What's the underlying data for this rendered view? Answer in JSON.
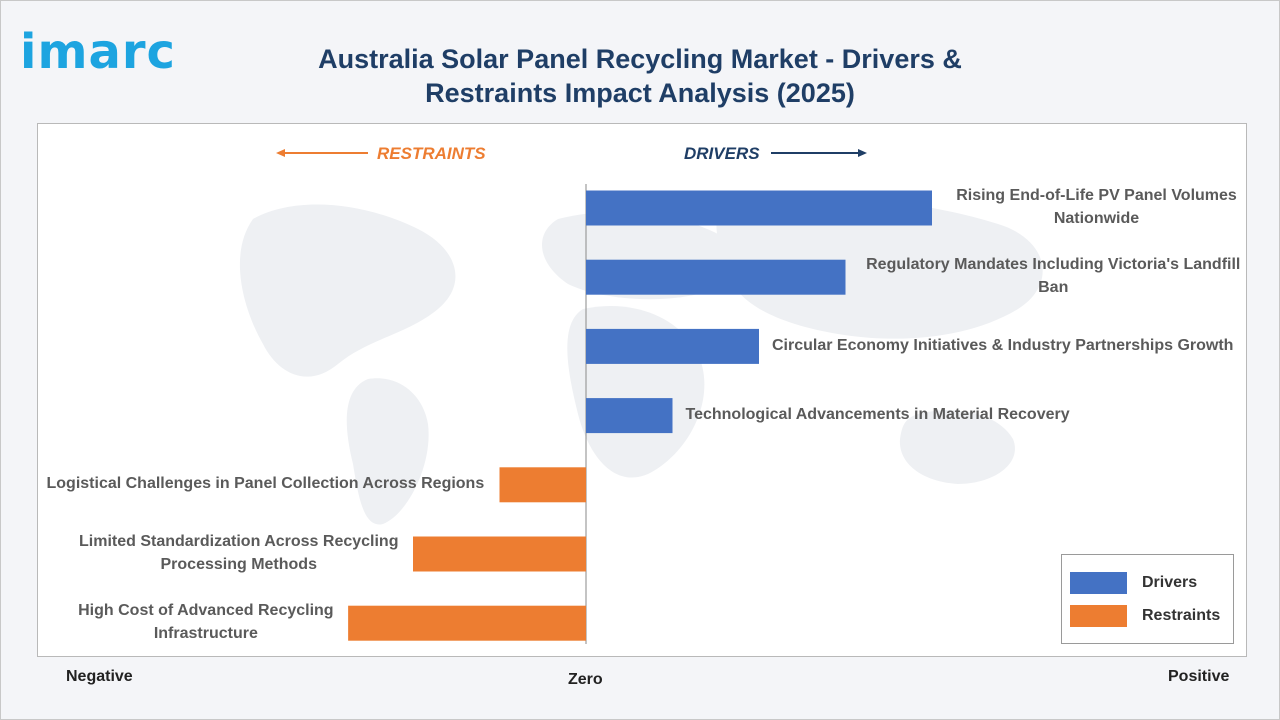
{
  "brand": {
    "logo_text": "imarc"
  },
  "title": "Australia Solar Panel Recycling Market - Drivers & Restraints Impact Analysis (2025)",
  "headers": {
    "restraints": "RESTRAINTS",
    "drivers": "DRIVERS"
  },
  "axis": {
    "negative": "Negative",
    "zero": "Zero",
    "positive": "Positive"
  },
  "colors": {
    "drivers": "#4472c4",
    "restraints": "#ed7d31",
    "title": "#1f3e66",
    "logo": "#1da4e0"
  },
  "legend": {
    "drivers": "Drivers",
    "restraints": "Restraints"
  },
  "chart_data": {
    "type": "bar",
    "orientation": "horizontal",
    "title": "Australia Solar Panel Recycling Market - Drivers & Restraints Impact Analysis (2025)",
    "xlabel": "",
    "ylabel": "",
    "xlim": [
      -4.5,
      5.2
    ],
    "grid": false,
    "legend_position": "bottom-right",
    "categories": [
      "Rising End-of-Life PV Panel Volumes Nationwide",
      "Regulatory Mandates Including Victoria's Landfill Ban",
      "Circular Economy Initiatives & Industry Partnerships Growth",
      "Technological Advancements in Material Recovery",
      "Logistical Challenges in Panel Collection Across Regions",
      "Limited Standardization Across Recycling Processing Methods",
      "High Cost of Advanced Recycling Infrastructure"
    ],
    "values": [
      4.0,
      3.0,
      2.0,
      1.0,
      -1.0,
      -2.0,
      -2.75
    ],
    "groups": [
      "Drivers",
      "Drivers",
      "Drivers",
      "Drivers",
      "Restraints",
      "Restraints",
      "Restraints"
    ],
    "label_lines": [
      [
        "Rising End-of-Life PV Panel Volumes",
        "Nationwide"
      ],
      [
        "Regulatory Mandates Including Victoria's Landfill",
        "Ban"
      ],
      [
        "Circular Economy Initiatives & Industry Partnerships Growth"
      ],
      [
        "Technological Advancements in Material Recovery"
      ],
      [
        "Logistical Challenges in Panel Collection Across Regions"
      ],
      [
        "Limited Standardization Across Recycling",
        "Processing Methods"
      ],
      [
        "High Cost of Advanced Recycling",
        "Infrastructure"
      ]
    ]
  }
}
